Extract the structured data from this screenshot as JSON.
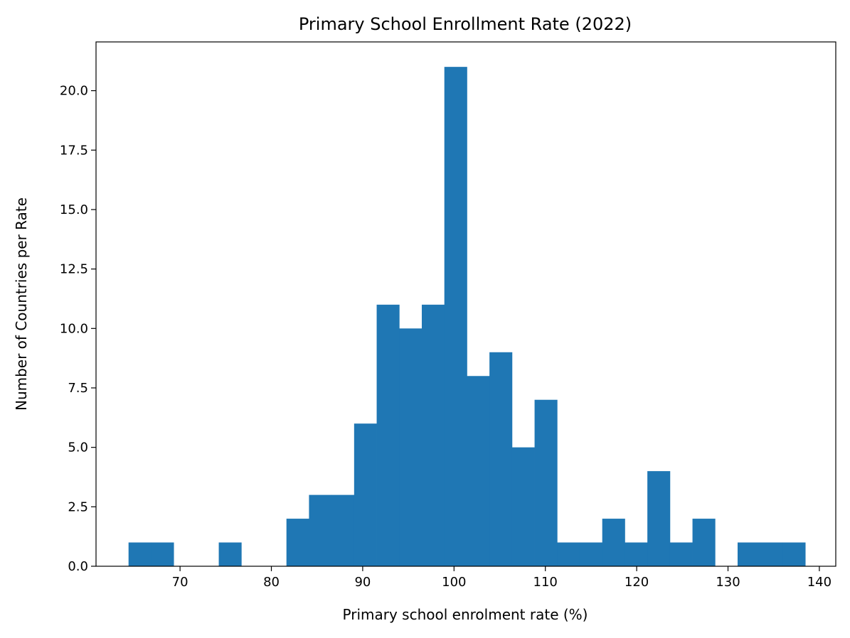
{
  "chart_data": {
    "type": "bar",
    "title": "Primary School Enrollment Rate (2022)",
    "xlabel": "Primary school enrolment rate (%)",
    "ylabel": "Number of Countries per Rate",
    "bar_color": "#1f77b4",
    "xlim": [
      60.8,
      141.8
    ],
    "ylim": [
      0,
      22.05
    ],
    "xticks": [
      "70",
      "80",
      "90",
      "100",
      "110",
      "120",
      "130",
      "140"
    ],
    "yticks": [
      "0.0",
      "2.5",
      "5.0",
      "7.5",
      "10.0",
      "12.5",
      "15.0",
      "17.5",
      "20.0"
    ],
    "bin_edges": [
      64.36,
      66.83,
      69.3,
      71.77,
      74.24,
      76.71,
      79.18,
      81.65,
      84.12,
      86.59,
      89.06,
      91.53,
      94.0,
      96.47,
      98.94,
      101.41,
      103.88,
      106.35,
      108.82,
      111.29,
      113.76,
      116.23,
      118.7,
      121.17,
      123.64,
      126.11,
      128.58,
      131.05,
      133.52,
      135.99,
      138.46
    ],
    "counts": [
      1,
      1,
      0,
      0,
      1,
      0,
      0,
      2,
      3,
      3,
      6,
      11,
      10,
      11,
      21,
      8,
      9,
      5,
      7,
      1,
      1,
      2,
      1,
      4,
      1,
      2,
      0,
      1,
      1,
      1
    ],
    "grid": false,
    "legend": "none"
  }
}
